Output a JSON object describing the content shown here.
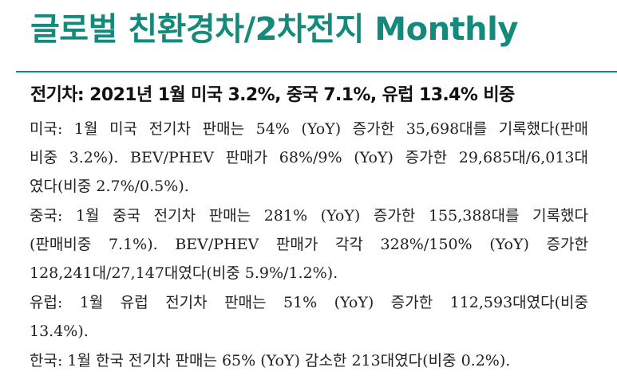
{
  "header": {
    "title": "글로벌 친환경차/2차전지 Monthly"
  },
  "section": {
    "heading": "전기차: 2021년 1월 미국 3.2%, 중국 7.1%, 유럽 13.4% 비중",
    "paragraphs": [
      {
        "lines": [
          "미국: 1월 미국 전기차 판매는 54% (YoY) 증가한 35,698대를 기록했다(판매",
          "비중 3.2%). BEV/PHEV 판매가 68%/9% (YoY) 증가한 29,685대/6,013대",
          "였다(비중 2.7%/0.5%)."
        ]
      },
      {
        "lines": [
          "중국: 1월 중국 전기차 판매는 281% (YoY) 증가한 155,388대를 기록했다",
          "(판매비중 7.1%). BEV/PHEV 판매가 각각 328%/150% (YoY) 증가한",
          "128,241대/27,147대였다(비중 5.9%/1.2%)."
        ]
      },
      {
        "lines": [
          "유럽: 1월 유럽 전기차 판매는 51% (YoY) 증가한 112,593대였다(비중",
          "13.4%)."
        ]
      },
      {
        "lines": [
          "한국: 1월 한국 전기차 판매는 65% (YoY) 감소한 213대였다(비중 0.2%)."
        ]
      }
    ]
  }
}
